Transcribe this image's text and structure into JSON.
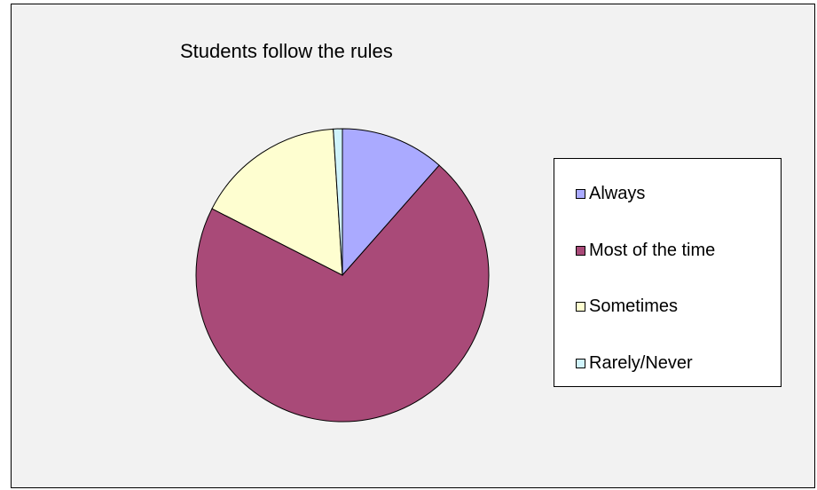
{
  "chart_data": {
    "type": "pie",
    "title": "Students follow the rules",
    "categories": [
      "Always",
      "Most of the time",
      "Sometimes",
      "Rarely/Never"
    ],
    "values": [
      11.5,
      71,
      16.5,
      1
    ],
    "colors": [
      "#aaaaff",
      "#a94a78",
      "#fefed0",
      "#d0f4fc"
    ],
    "legend": "right"
  }
}
